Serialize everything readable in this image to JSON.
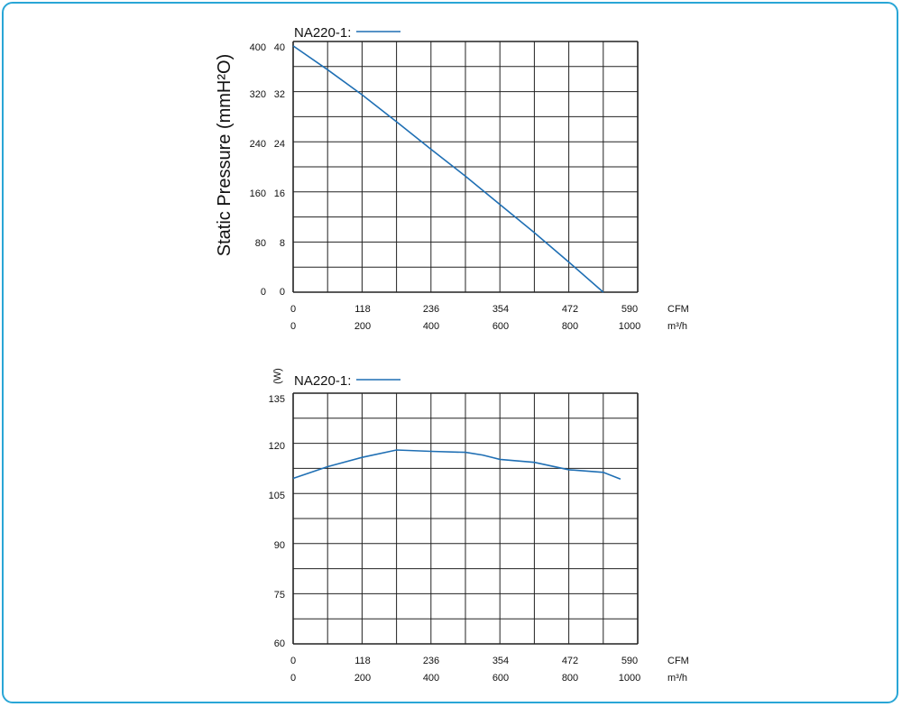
{
  "colors": {
    "frame": "#29a6d6",
    "series": "#1f6fb4",
    "grid": "#222222"
  },
  "chart_data": [
    {
      "type": "line",
      "title": "",
      "legend_label": "NA220-1:",
      "ylabel": "Static Pressure (mmH²O)",
      "y_ticks_outer": [
        "400",
        "320",
        "240",
        "160",
        "80",
        "0"
      ],
      "y_ticks_inner": [
        "40",
        "32",
        "24",
        "16",
        "8",
        "0"
      ],
      "ylim": [
        0,
        40
      ],
      "x_cfm_ticks": [
        "0",
        "118",
        "236",
        "354",
        "472",
        "590"
      ],
      "x_m3h_ticks": [
        "0",
        "200",
        "400",
        "600",
        "800",
        "1000"
      ],
      "x_cfm_unit": "CFM",
      "x_m3h_unit": "m³/h",
      "xlim_m3h": [
        0,
        1000
      ],
      "series": [
        {
          "name": "NA220-1",
          "x": [
            0,
            100,
            200,
            300,
            400,
            500,
            600,
            700,
            800,
            900
          ],
          "y": [
            39.3,
            35.5,
            31.5,
            27.2,
            22.8,
            18.5,
            14.0,
            9.5,
            4.8,
            0
          ]
        }
      ]
    },
    {
      "type": "line",
      "title": "",
      "legend_label": "NA220-1:",
      "ylabel": "(W)",
      "y_ticks": [
        "135",
        "120",
        "105",
        "90",
        "75",
        "60"
      ],
      "ylim": [
        60,
        135
      ],
      "x_cfm_ticks": [
        "0",
        "118",
        "236",
        "354",
        "472",
        "590"
      ],
      "x_m3h_ticks": [
        "0",
        "200",
        "400",
        "600",
        "800",
        "1000"
      ],
      "x_cfm_unit": "CFM",
      "x_m3h_unit": "m³/h",
      "xlim_m3h": [
        0,
        1000
      ],
      "series": [
        {
          "name": "NA220-1",
          "x": [
            0,
            100,
            200,
            300,
            400,
            500,
            550,
            600,
            700,
            800,
            900,
            950
          ],
          "y": [
            109.5,
            113.0,
            115.8,
            118.0,
            117.6,
            117.3,
            116.5,
            115.2,
            114.3,
            112.1,
            111.3,
            109.3
          ]
        }
      ]
    }
  ]
}
